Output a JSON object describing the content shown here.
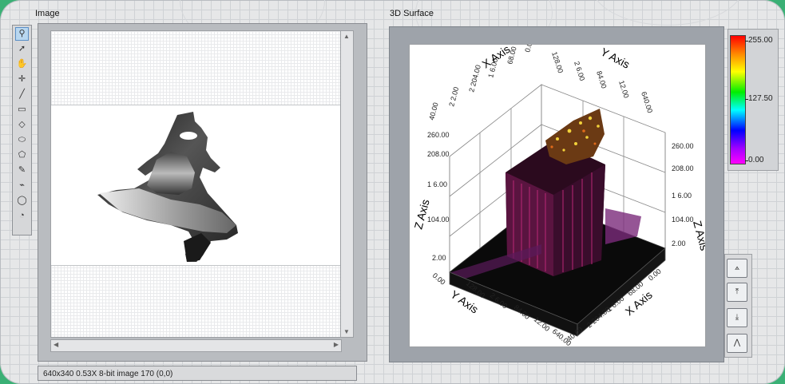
{
  "image_display": {
    "label": "Image",
    "status_text": "640x340 0.53X 8-bit image 170    (0,0)",
    "tools": [
      {
        "icon": "zoom-icon",
        "glyph": "⚲"
      },
      {
        "icon": "pointer-icon",
        "glyph": "➚"
      },
      {
        "icon": "pan-hand-icon",
        "glyph": "✋"
      },
      {
        "icon": "point-icon",
        "glyph": "✛"
      },
      {
        "icon": "line-icon",
        "glyph": "╱"
      },
      {
        "icon": "rectangle-icon",
        "glyph": "▭"
      },
      {
        "icon": "rotated-rectangle-icon",
        "glyph": "◇"
      },
      {
        "icon": "oval-icon",
        "glyph": "⬭"
      },
      {
        "icon": "polygon-icon",
        "glyph": "⬠"
      },
      {
        "icon": "freehand-icon",
        "glyph": "✎"
      },
      {
        "icon": "broken-line-icon",
        "glyph": "⌁"
      },
      {
        "icon": "annulus-icon",
        "glyph": "◯"
      },
      {
        "icon": "spoke-icon",
        "glyph": "◔"
      }
    ]
  },
  "surface": {
    "label": "3D Surface",
    "x_axis_label": "X Axis",
    "y_axis_label": "Y Axis",
    "z_axis_label": "Z Axis",
    "colorramp_labels": [
      "255.00",
      "127.50",
      "0.00"
    ],
    "view_buttons": [
      {
        "icon": "view-default-icon"
      },
      {
        "icon": "view-xy-plane-icon"
      },
      {
        "icon": "view-xz-plane-icon"
      },
      {
        "icon": "view-yz-plane-icon"
      }
    ]
  },
  "chart_data": {
    "type": "surface",
    "x_axis": {
      "label": "X Axis",
      "ticks": [
        "40.00",
        "2 204.00",
        "1 6.00",
        "68.00",
        "0.00"
      ]
    },
    "y_axis": {
      "label": "Y Axis",
      "ticks": [
        "0.00",
        "128.00",
        "2 6.00",
        "84.00",
        "12.00",
        "640.00"
      ]
    },
    "z_axis": {
      "label": "Z Axis",
      "ticks": [
        "2.00",
        "104.00",
        "1 6.00",
        "208.00",
        "260.00"
      ]
    },
    "top_x_ticks": [
      "40.00",
      "2 2.00",
      "2 204.00",
      "1 6.00",
      "68.00",
      "0.00"
    ],
    "top_y_ticks": [
      "128.00",
      "2 6.00",
      "84.00",
      "12.00",
      "640.00"
    ],
    "right_z_ticks": [
      "260.00",
      "208.00",
      "1 6.00",
      "104.00",
      "2.00"
    ],
    "colorramp": {
      "min": 0.0,
      "mid": 127.5,
      "max": 255.0,
      "colors": [
        "#ff00ff",
        "#0000ff",
        "#00ffff",
        "#00ee00",
        "#ffff00",
        "#ff8800",
        "#ff0000"
      ]
    }
  }
}
